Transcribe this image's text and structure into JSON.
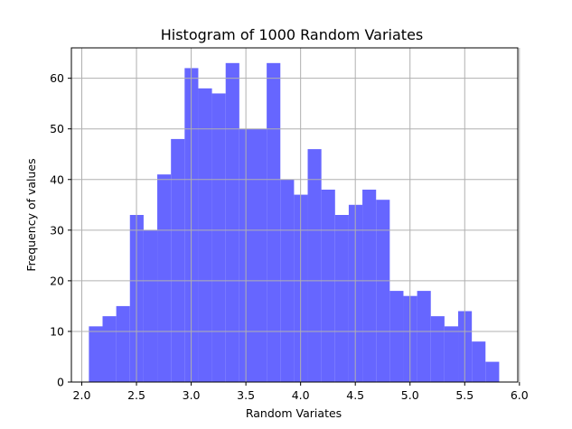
{
  "chart_data": {
    "type": "bar",
    "title": "Histogram of 1000 Random Variates",
    "xlabel": "Random Variates",
    "ylabel": "Frequency of values",
    "xlim": [
      1.905,
      5.985
    ],
    "ylim": [
      0,
      66
    ],
    "xticks": [
      "2.0",
      "2.5",
      "3.0",
      "3.5",
      "4.0",
      "4.5",
      "5.0",
      "5.5",
      "6.0"
    ],
    "yticks": [
      "0",
      "10",
      "20",
      "30",
      "40",
      "50",
      "60"
    ],
    "grid": true,
    "bar_color": "#6666ff",
    "bin_start": 2.065,
    "bin_width": 0.125,
    "values": [
      11,
      13,
      15,
      33,
      30,
      41,
      48,
      62,
      58,
      57,
      63,
      50,
      50,
      63,
      40,
      37,
      46,
      38,
      33,
      35,
      38,
      36,
      18,
      17,
      18,
      13,
      11,
      14,
      8,
      4
    ]
  }
}
